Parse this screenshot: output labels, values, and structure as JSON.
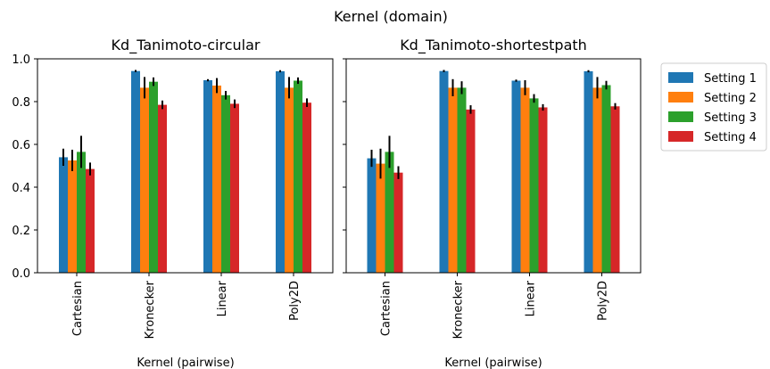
{
  "suptitle": "Kernel (domain)",
  "colors": {
    "Setting 1": "#1f77b4",
    "Setting 2": "#ff7f0e",
    "Setting 3": "#2ca02c",
    "Setting 4": "#d62728"
  },
  "legend": {
    "placement": "outside-right",
    "entries": [
      "Setting 1",
      "Setting 2",
      "Setting 3",
      "Setting 4"
    ]
  },
  "chart_data": [
    {
      "type": "bar",
      "title": "Kd_Tanimoto-circular",
      "xlabel": "Kernel (pairwise)",
      "ylabel": "",
      "ylim": [
        0,
        1.0
      ],
      "yticks": [
        "0.0",
        "0.2",
        "0.4",
        "0.6",
        "0.8",
        "1.0"
      ],
      "categories": [
        "Cartesian",
        "Kronecker",
        "Linear",
        "Poly2D"
      ],
      "series": [
        {
          "name": "Setting 1",
          "values": [
            0.54,
            0.943,
            0.9,
            0.942
          ],
          "errors": [
            0.04,
            0.005,
            0.005,
            0.005
          ]
        },
        {
          "name": "Setting 2",
          "values": [
            0.525,
            0.865,
            0.875,
            0.865
          ],
          "errors": [
            0.05,
            0.05,
            0.035,
            0.05
          ]
        },
        {
          "name": "Setting 3",
          "values": [
            0.565,
            0.893,
            0.83,
            0.898
          ],
          "errors": [
            0.075,
            0.02,
            0.02,
            0.015
          ]
        },
        {
          "name": "Setting 4",
          "values": [
            0.485,
            0.785,
            0.79,
            0.795
          ],
          "errors": [
            0.03,
            0.02,
            0.02,
            0.02
          ]
        }
      ]
    },
    {
      "type": "bar",
      "title": "Kd_Tanimoto-shortestpath",
      "xlabel": "Kernel (pairwise)",
      "ylabel": "",
      "ylim": [
        0,
        1.0
      ],
      "yticks": [
        "0.0",
        "0.2",
        "0.4",
        "0.6",
        "0.8",
        "1.0"
      ],
      "categories": [
        "Cartesian",
        "Kronecker",
        "Linear",
        "Poly2D"
      ],
      "series": [
        {
          "name": "Setting 1",
          "values": [
            0.535,
            0.943,
            0.898,
            0.942
          ],
          "errors": [
            0.04,
            0.005,
            0.005,
            0.005
          ]
        },
        {
          "name": "Setting 2",
          "values": [
            0.51,
            0.865,
            0.865,
            0.865
          ],
          "errors": [
            0.07,
            0.04,
            0.035,
            0.05
          ]
        },
        {
          "name": "Setting 3",
          "values": [
            0.565,
            0.865,
            0.815,
            0.877
          ],
          "errors": [
            0.075,
            0.03,
            0.02,
            0.02
          ]
        },
        {
          "name": "Setting 4",
          "values": [
            0.468,
            0.763,
            0.773,
            0.778
          ],
          "errors": [
            0.03,
            0.02,
            0.015,
            0.015
          ]
        }
      ]
    }
  ]
}
